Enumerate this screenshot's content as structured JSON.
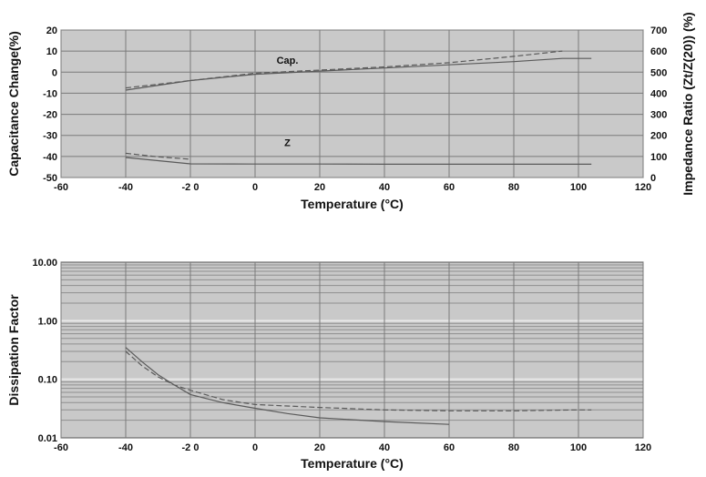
{
  "charts": [
    {
      "type": "line",
      "xlabel": "Temperature (°C)",
      "ylabel": "Capacitance Change(%)",
      "y2label": "Impedance Ratio (Zt/Z(20)) (%)",
      "xlim": [
        -60,
        120
      ],
      "ylim": [
        -50,
        20
      ],
      "y2lim": [
        0,
        700
      ],
      "xticks": [
        -60,
        -40,
        -20,
        0,
        20,
        40,
        60,
        80,
        100,
        120
      ],
      "xtick_labels": [
        "-60",
        "-40",
        "-2 0",
        "0",
        "20",
        "40",
        "60",
        "80",
        "100",
        "120"
      ],
      "yticks": [
        20,
        10,
        0,
        -10,
        -20,
        -30,
        -40,
        -50
      ],
      "y2ticks": [
        700,
        600,
        500,
        400,
        300,
        200,
        100,
        0
      ],
      "grid": true,
      "annotations": [
        {
          "text": "Cap.",
          "x": 10,
          "y": 4
        },
        {
          "text": "Z",
          "x": 10,
          "y": -35
        }
      ],
      "series": [
        {
          "axis": "left",
          "style": "solid",
          "x": [
            -40,
            -20,
            0,
            20,
            40,
            60,
            80,
            95,
            104
          ],
          "y": [
            -8.5,
            -4,
            -1,
            0.5,
            2,
            3.5,
            5,
            6.5,
            6.5
          ]
        },
        {
          "axis": "left",
          "style": "dashed",
          "x": [
            -40,
            -20,
            0,
            20,
            40,
            60,
            80,
            95
          ],
          "y": [
            -7.5,
            -4,
            -0.5,
            1,
            2.5,
            4.5,
            7.5,
            10
          ]
        },
        {
          "axis": "right",
          "style": "solid",
          "x": [
            -40,
            -30,
            -20,
            0,
            20,
            40,
            60,
            80,
            104
          ],
          "y": [
            95,
            80,
            65,
            64,
            64,
            63,
            63,
            63,
            63
          ]
        },
        {
          "axis": "right",
          "style": "dashed",
          "x": [
            -40,
            -30,
            -20
          ],
          "y": [
            115,
            98,
            87
          ]
        }
      ]
    },
    {
      "type": "line",
      "xlabel": "Temperature (°C)",
      "ylabel": "Dissipation Factor",
      "xlim": [
        -60,
        120
      ],
      "ylim": [
        0.01,
        10
      ],
      "yscale": "log",
      "xticks": [
        -60,
        -40,
        -20,
        0,
        20,
        40,
        60,
        80,
        100,
        120
      ],
      "xtick_labels": [
        "-60",
        "-40",
        "-2 0",
        "0",
        "20",
        "40",
        "60",
        "80",
        "100",
        "120"
      ],
      "yticks": [
        10,
        1,
        0.1,
        0.01
      ],
      "ytick_labels": [
        "10.00",
        "1.00",
        "0.10",
        "0.01"
      ],
      "grid": true,
      "series": [
        {
          "style": "solid",
          "x": [
            -40,
            -35,
            -30,
            -25,
            -20,
            -10,
            0,
            10,
            20,
            40,
            60
          ],
          "y": [
            0.35,
            0.2,
            0.12,
            0.08,
            0.055,
            0.04,
            0.032,
            0.026,
            0.022,
            0.019,
            0.017
          ]
        },
        {
          "style": "dashed",
          "x": [
            -40,
            -35,
            -30,
            -25,
            -20,
            -10,
            0,
            20,
            40,
            60,
            80,
            100,
            104
          ],
          "y": [
            0.3,
            0.17,
            0.11,
            0.08,
            0.065,
            0.045,
            0.037,
            0.033,
            0.03,
            0.029,
            0.029,
            0.03,
            0.03
          ]
        }
      ]
    }
  ]
}
